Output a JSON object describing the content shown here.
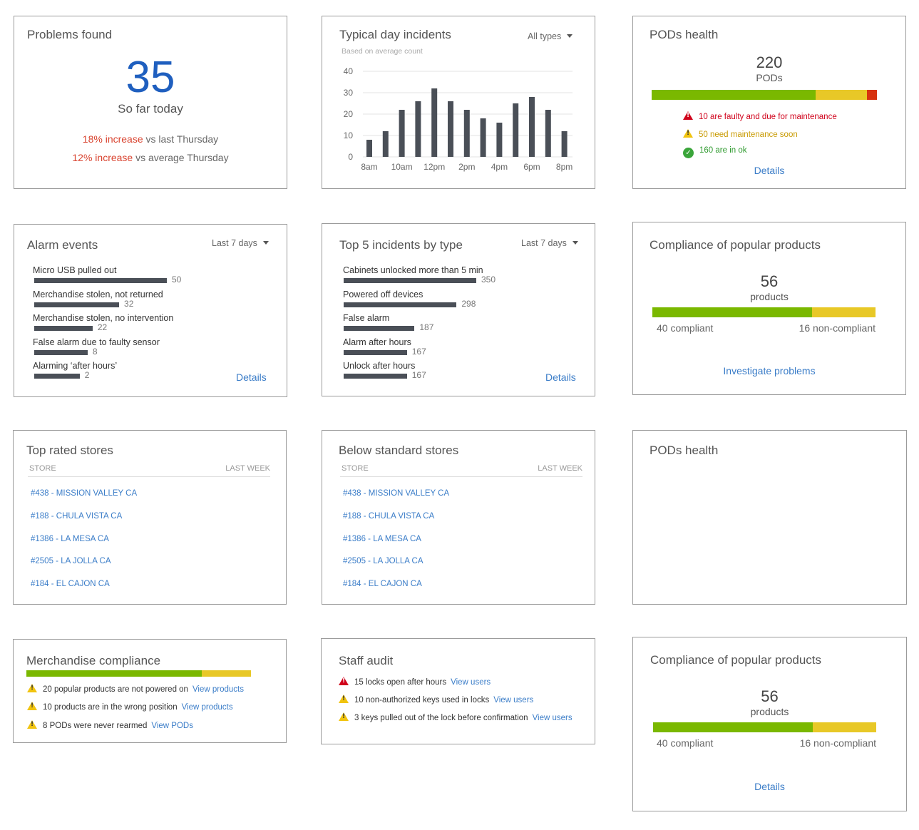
{
  "problems": {
    "title": "Problems found",
    "count": "35",
    "subtitle": "So far today",
    "line1_hl": "18% increase",
    "line1_rest": " vs last Thursday",
    "line2_hl": "12% increase",
    "line2_rest": " vs average Thursday"
  },
  "typical": {
    "title": "Typical day incidents",
    "dropdown": "All types",
    "subtitle": "Based on average count"
  },
  "chart_data": {
    "type": "bar",
    "title": "Typical day incidents",
    "subtitle": "Based on average count",
    "categories": [
      "8am",
      "9am",
      "10am",
      "11am",
      "12pm",
      "1pm",
      "2pm",
      "3pm",
      "4pm",
      "5pm",
      "6pm",
      "7pm",
      "8pm"
    ],
    "tick_labels": [
      "8am",
      "10am",
      "12pm",
      "2pm",
      "4pm",
      "6pm",
      "8pm"
    ],
    "values": [
      8,
      12,
      22,
      26,
      32,
      26,
      22,
      18,
      16,
      25,
      28,
      22,
      12
    ],
    "ylim": [
      0,
      40
    ],
    "yticks": [
      "40",
      "30",
      "20",
      "10",
      "0"
    ],
    "grid": true
  },
  "pods": {
    "title": "PODs health",
    "count": "220",
    "unit": "PODs",
    "segments": [
      160,
      50,
      10
    ],
    "faulty": "10 are faulty and due for maintenance",
    "soon": "50 need maintenance soon",
    "ok": "160 are in ok",
    "details": "Details"
  },
  "alarm": {
    "title": "Alarm events",
    "dropdown": "Last 7 days",
    "max": 50,
    "items": [
      {
        "label": "Micro USB pulled out",
        "value": "50"
      },
      {
        "label": "Merchandise stolen, not returned",
        "value": "32"
      },
      {
        "label": "Merchandise stolen, no intervention",
        "value": "22"
      },
      {
        "label": "False alarm due to faulty sensor",
        "value": "8"
      },
      {
        "label": "Alarming ‘after hours’",
        "value": "2"
      }
    ],
    "details": "Details"
  },
  "top5": {
    "title": "Top 5 incidents by type",
    "dropdown": "Last 7 days",
    "max": 350,
    "items": [
      {
        "label": "Cabinets unlocked more than 5 min",
        "value": "350"
      },
      {
        "label": "Powered off devices",
        "value": "298"
      },
      {
        "label": "False alarm",
        "value": "187"
      },
      {
        "label": "Alarm after hours",
        "value": "167"
      },
      {
        "label": "Unlock after hours",
        "value": "167"
      }
    ],
    "details": "Details"
  },
  "compliance1": {
    "title": "Compliance of popular products",
    "count": "56",
    "unit": "products",
    "compliant": 40,
    "noncompliant": 16,
    "compliant_label": "40 compliant",
    "noncompliant_label": "16 non-compliant",
    "link": "Investigate problems"
  },
  "top_rated": {
    "title": "Top rated stores",
    "col1": "STORE",
    "col2": "LAST WEEK",
    "stores": [
      "#438 - MISSION VALLEY CA",
      "#188 - CHULA VISTA CA",
      "#1386 - LA MESA CA",
      "#2505 - LA JOLLA CA",
      "#184 - EL CAJON CA"
    ]
  },
  "below_std": {
    "title": "Below standard stores",
    "col1": "STORE",
    "col2": "LAST WEEK",
    "stores": [
      "#438 - MISSION VALLEY CA",
      "#188 - CHULA VISTA CA",
      "#1386 - LA MESA CA",
      "#2505 - LA JOLLA CA",
      "#184 - EL CAJON CA"
    ]
  },
  "pods2": {
    "title": "PODs health"
  },
  "merch": {
    "title": "Merchandise compliance",
    "green": 78,
    "yellow": 22,
    "rows": [
      {
        "text": "20 popular products are not powered on",
        "link": "View products"
      },
      {
        "text": "10 products are in the wrong position",
        "link": "View products"
      },
      {
        "text": "8 PODs were never rearmed",
        "link": "View PODs"
      }
    ]
  },
  "staff": {
    "title": "Staff audit",
    "rows": [
      {
        "text": "15 locks open after hours",
        "link": "View users",
        "level": "red"
      },
      {
        "text": "10 non-authorized keys used in locks",
        "link": "View users",
        "level": "yellow"
      },
      {
        "text": "3 keys pulled out of the lock before confirmation",
        "link": "View users",
        "level": "yellow"
      }
    ]
  },
  "compliance2": {
    "title": "Compliance of popular products",
    "count": "56",
    "unit": "products",
    "compliant": 40,
    "noncompliant": 16,
    "compliant_label": "40 compliant",
    "noncompliant_label": "16 non-compliant",
    "link": "Details"
  }
}
